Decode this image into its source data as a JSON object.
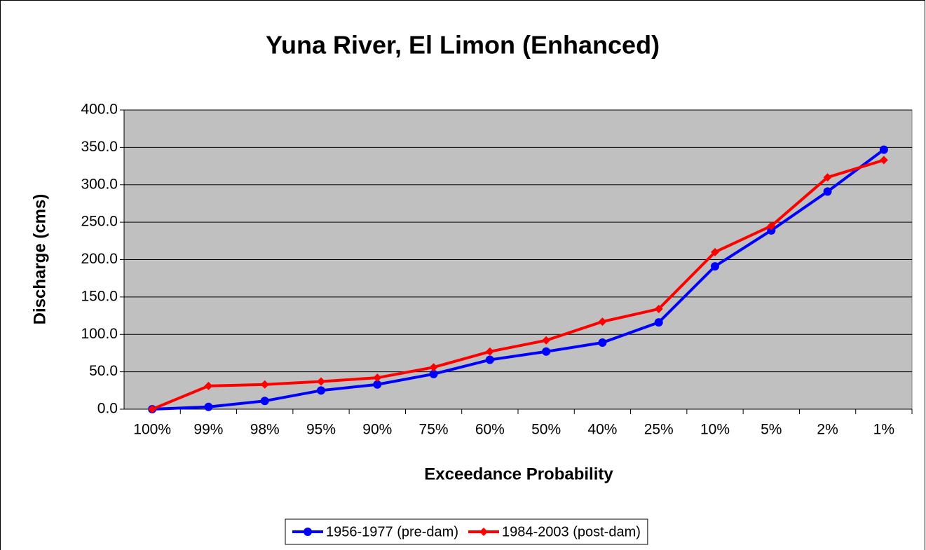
{
  "chart_data": {
    "type": "line",
    "title": "Yuna River, El Limon (Enhanced)",
    "xlabel": "Exceedance Probability",
    "ylabel": "Discharge (cms)",
    "categories": [
      "100%",
      "99%",
      "98%",
      "95%",
      "90%",
      "75%",
      "60%",
      "50%",
      "40%",
      "25%",
      "10%",
      "5%",
      "2%",
      "1%"
    ],
    "series": [
      {
        "name": "1956-1977 (pre-dam)",
        "color": "#0000ff",
        "marker": "circle",
        "values": [
          0,
          3,
          11,
          25,
          33,
          47,
          66,
          77,
          89,
          116,
          191,
          239,
          291,
          347
        ]
      },
      {
        "name": "1984-2003 (post-dam)",
        "color": "#ff0000",
        "marker": "diamond",
        "values": [
          0,
          31,
          33,
          37,
          42,
          56,
          77,
          92,
          117,
          134,
          210,
          245,
          310,
          333
        ]
      }
    ],
    "ylim": [
      0,
      400
    ],
    "yticks": [
      {
        "value": 0,
        "label": "0.0"
      },
      {
        "value": 50,
        "label": "50.0"
      },
      {
        "value": 100,
        "label": "100.0"
      },
      {
        "value": 150,
        "label": "150.0"
      },
      {
        "value": 200,
        "label": "200.0"
      },
      {
        "value": 250,
        "label": "250.0"
      },
      {
        "value": 300,
        "label": "300.0"
      },
      {
        "value": 350,
        "label": "350.0"
      },
      {
        "value": 400,
        "label": "400.0"
      }
    ],
    "grid": true,
    "legend": "bottom"
  }
}
